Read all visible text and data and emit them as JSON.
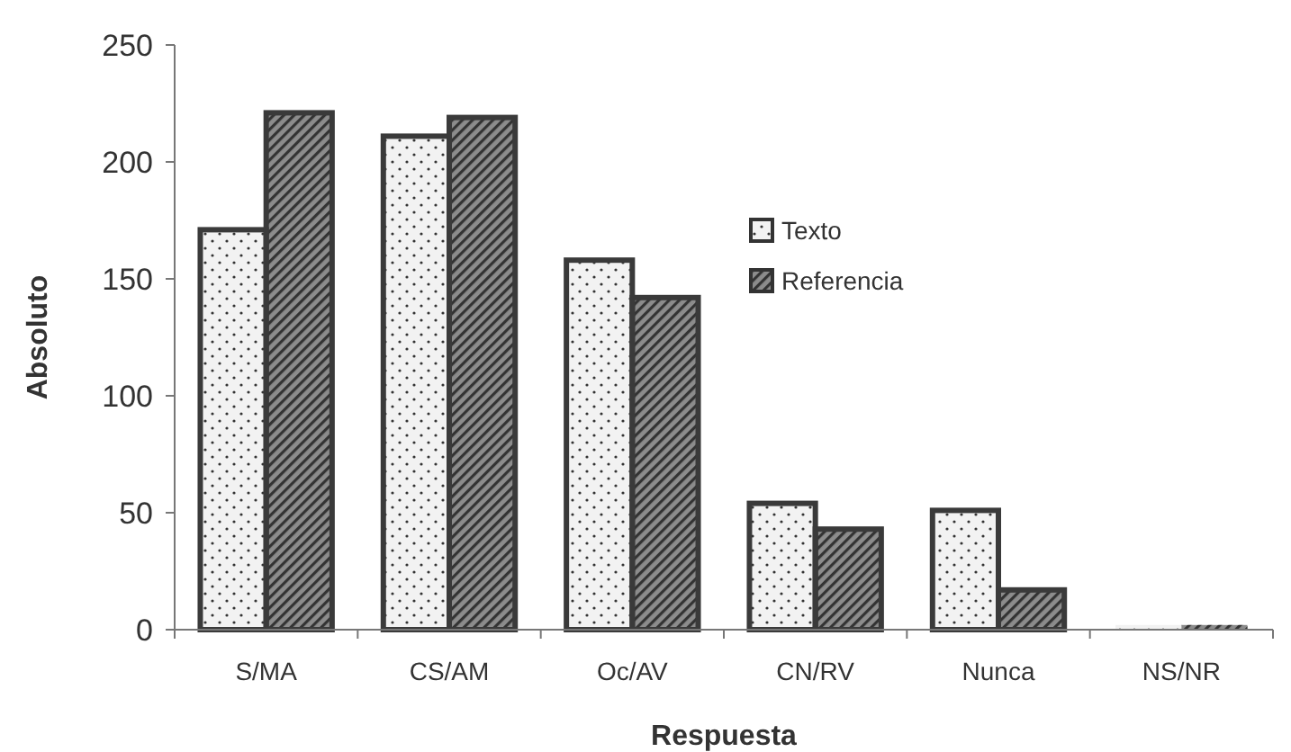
{
  "chart_data": {
    "type": "bar",
    "xlabel": "Respuesta",
    "ylabel": "Absoluto",
    "categories": [
      "S/MA",
      "CS/AM",
      "Oc/AV",
      "CN/RV",
      "Nunca",
      "NS/NR"
    ],
    "series": [
      {
        "name": "Texto",
        "color": "#f2f2f2",
        "values": [
          171,
          211,
          158,
          54,
          51,
          2
        ]
      },
      {
        "name": "Referencia",
        "color": "#8c8c8c",
        "values": [
          221,
          219,
          142,
          43,
          17,
          2
        ]
      }
    ],
    "ylim": [
      0,
      250
    ],
    "yticks": [
      0,
      50,
      100,
      150,
      200,
      250
    ],
    "grid": false,
    "legend": "top right"
  }
}
